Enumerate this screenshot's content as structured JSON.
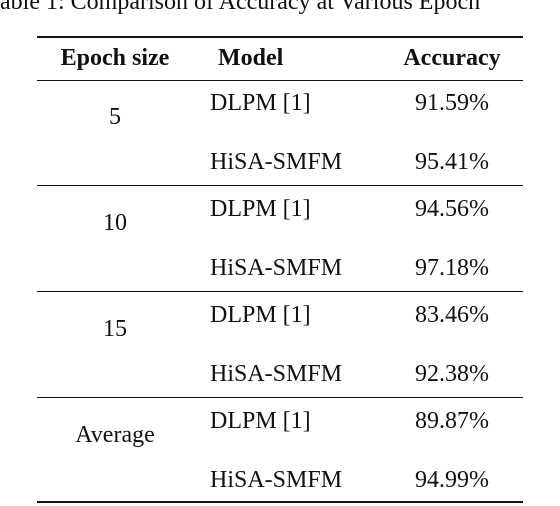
{
  "header": {
    "title": "able 1: Comparison of Accuracy at Various Epoch"
  },
  "table": {
    "columns": [
      "Epoch size",
      "Model",
      "Accuracy"
    ],
    "groups": [
      {
        "epoch": "5",
        "rows": [
          [
            "DLPM [1]",
            "91.59%"
          ],
          [
            "HiSA-SMFM",
            "95.41%"
          ]
        ]
      },
      {
        "epoch": "10",
        "rows": [
          [
            "DLPM [1]",
            "94.56%"
          ],
          [
            "HiSA-SMFM",
            "97.18%"
          ]
        ]
      },
      {
        "epoch": "15",
        "rows": [
          [
            "DLPM [1]",
            "83.46%"
          ],
          [
            "HiSA-SMFM",
            "92.38%"
          ]
        ]
      },
      {
        "epoch": "Average",
        "rows": [
          [
            "DLPM [1]",
            "89.87%"
          ],
          [
            "HiSA-SMFM",
            "94.99%"
          ]
        ]
      }
    ]
  }
}
